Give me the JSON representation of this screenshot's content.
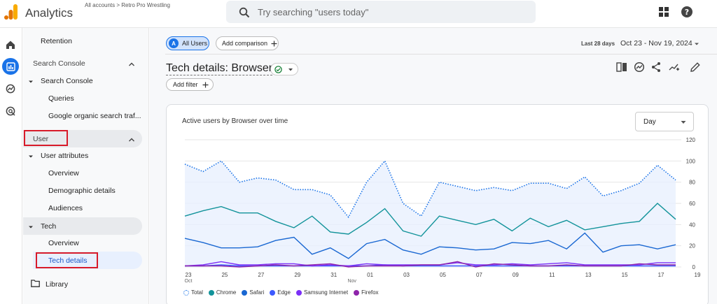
{
  "header": {
    "app_title": "Analytics",
    "breadcrumb": "All accounts > Retro Pro Wrestling",
    "search_placeholder": "Try searching \"users today\""
  },
  "rail": {
    "icons": [
      "home-icon",
      "reports-icon",
      "explore-icon",
      "advertising-icon"
    ]
  },
  "nav": {
    "retention": "Retention",
    "search_console_section": "Search Console",
    "search_console_group": "Search Console",
    "queries": "Queries",
    "google_organic": "Google organic search traf...",
    "user_section": "User",
    "user_attributes": "User attributes",
    "overview_ua": "Overview",
    "demographic_details": "Demographic details",
    "audiences": "Audiences",
    "tech": "Tech",
    "overview_tech": "Overview",
    "tech_details": "Tech details",
    "library": "Library"
  },
  "toolbar": {
    "all_users_avatar": "A",
    "all_users": "All Users",
    "add_comparison": "Add comparison",
    "date_label": "Last 28 days",
    "date_range": "Oct 23 - Nov 19, 2024",
    "page_title": "Tech details: Browser",
    "add_filter": "Add filter"
  },
  "card": {
    "title": "Active users by Browser over time",
    "period_select": "Day"
  },
  "colors": {
    "accent": "#1a73e8",
    "highlight_box": "#d81b2a",
    "total": "#1a73e8",
    "chrome": "#12939a",
    "safari": "#1967d2",
    "edge": "#3d5afe",
    "samsung": "#7b2ff7",
    "firefox": "#8e24aa"
  },
  "chart_data": {
    "type": "line",
    "title": "Active users by Browser over time",
    "x_tick_labels": [
      "23",
      "25",
      "27",
      "29",
      "31",
      "01",
      "03",
      "05",
      "07",
      "09",
      "11",
      "13",
      "15",
      "17",
      "19"
    ],
    "x_tick_sublabels": [
      "Oct",
      "Nov"
    ],
    "y_ticks": [
      0,
      20,
      40,
      60,
      80,
      100,
      120
    ],
    "ylim": [
      0,
      120
    ],
    "grid": true,
    "legend_position": "bottom",
    "x": [
      "Oct 23",
      "Oct 24",
      "Oct 25",
      "Oct 26",
      "Oct 27",
      "Oct 28",
      "Oct 29",
      "Oct 30",
      "Oct 31",
      "Nov 01",
      "Nov 02",
      "Nov 03",
      "Nov 04",
      "Nov 05",
      "Nov 06",
      "Nov 07",
      "Nov 08",
      "Nov 09",
      "Nov 10",
      "Nov 11",
      "Nov 12",
      "Nov 13",
      "Nov 14",
      "Nov 15",
      "Nov 16",
      "Nov 17",
      "Nov 18",
      "Nov 19"
    ],
    "series": [
      {
        "name": "Total",
        "style": "dotted",
        "values": [
          97,
          90,
          100,
          80,
          84,
          82,
          73,
          73,
          68,
          47,
          80,
          100,
          60,
          48,
          80,
          76,
          72,
          75,
          72,
          79,
          79,
          74,
          85,
          67,
          72,
          79,
          96,
          82
        ]
      },
      {
        "name": "Chrome",
        "values": [
          48,
          53,
          57,
          51,
          51,
          43,
          37,
          48,
          33,
          31,
          42,
          55,
          34,
          29,
          48,
          44,
          40,
          45,
          34,
          46,
          38,
          44,
          35,
          38,
          41,
          43,
          60,
          45
        ]
      },
      {
        "name": "Safari",
        "values": [
          27,
          23,
          18,
          18,
          19,
          25,
          28,
          12,
          18,
          8,
          22,
          26,
          16,
          12,
          19,
          18,
          16,
          17,
          23,
          22,
          25,
          17,
          32,
          14,
          20,
          21,
          17,
          21
        ]
      },
      {
        "name": "Edge",
        "values": [
          1,
          1,
          2,
          1,
          1,
          1,
          1,
          1,
          1,
          1,
          1,
          2,
          1,
          1,
          1,
          1,
          1,
          1,
          1,
          1,
          1,
          1,
          1,
          1,
          1,
          1,
          1,
          1
        ]
      },
      {
        "name": "Samsung Internet",
        "values": [
          1,
          2,
          5,
          2,
          2,
          3,
          3,
          1,
          2,
          1,
          3,
          2,
          2,
          2,
          2,
          4,
          2,
          2,
          3,
          2,
          3,
          4,
          2,
          2,
          2,
          2,
          4,
          4
        ]
      },
      {
        "name": "Firefox",
        "values": [
          1,
          1,
          1,
          0,
          1,
          2,
          1,
          2,
          3,
          0,
          1,
          1,
          1,
          2,
          2,
          5,
          0,
          3,
          2,
          1,
          1,
          2,
          1,
          1,
          1,
          3,
          2,
          2
        ]
      }
    ]
  }
}
